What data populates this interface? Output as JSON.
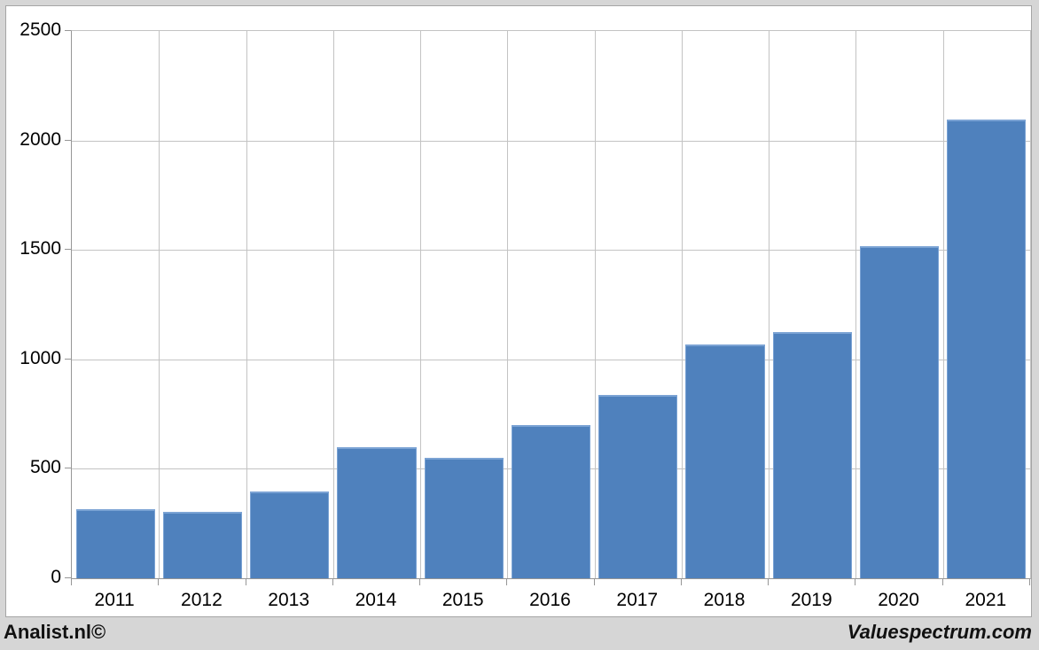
{
  "page": {
    "background_color": "#d6d6d6",
    "surface_color": "#ffffff"
  },
  "footer": {
    "left_credit": "Analist.nl©",
    "right_credit": "Valuespectrum.com"
  },
  "chart_data": {
    "type": "bar",
    "title": "",
    "xlabel": "",
    "ylabel": "",
    "categories": [
      "2011",
      "2012",
      "2013",
      "2014",
      "2015",
      "2016",
      "2017",
      "2018",
      "2019",
      "2020",
      "2021"
    ],
    "values": [
      315,
      305,
      398,
      600,
      551,
      701,
      838,
      1069,
      1126,
      1518,
      2096
    ],
    "ylim": [
      0,
      2500
    ],
    "y_ticks": [
      0,
      500,
      1000,
      1500,
      2000,
      2500
    ],
    "grid": true,
    "legend": false,
    "bar_color": "#4f81bd",
    "bar_border_color": "#7ba3d4",
    "gridline_color": "#c3c3c3",
    "axis_color": "#969696",
    "label_color": "#000000"
  }
}
